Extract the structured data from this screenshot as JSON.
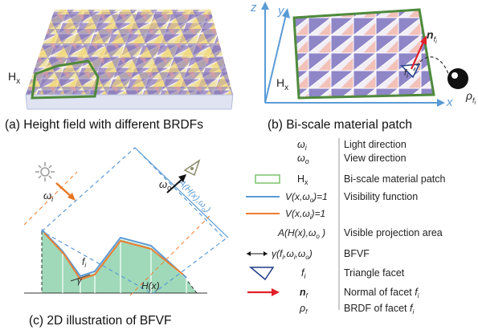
{
  "panels": {
    "a": {
      "caption": "(a) Height field with different BRDFs",
      "hx_label": "H",
      "hx_sub": "x"
    },
    "b": {
      "caption": "(b) Bi-scale material patch",
      "axis_x": "x",
      "axis_y": "y",
      "axis_z": "z",
      "hx_label": "H",
      "hx_sub": "x",
      "facet_label": "f",
      "facet_sub": "i",
      "normal_label": "n",
      "normal_sub": "f",
      "normal_subsub": "i",
      "rho_label": "ρ",
      "rho_sub": "f",
      "rho_subsub": "i"
    },
    "c": {
      "caption": "(c) 2D illustration of BFVF",
      "wi_label": "ω",
      "wi_sub": "i",
      "wo_label": "ω",
      "wo_sub": "o",
      "fi_label": "f",
      "fi_sub": "i",
      "gamma_label": "γ",
      "hx_label": "H(x)",
      "proj_label": "A(H(x),ω",
      "proj_sub": "o",
      "proj_tail": ")"
    }
  },
  "legend": [
    {
      "id": "light",
      "symbol": "ω",
      "sub": "i",
      "text": "Light direction"
    },
    {
      "id": "view",
      "symbol": "ω",
      "sub": "o",
      "text": "View direction"
    },
    {
      "id": "hx",
      "symbol": "H",
      "sub": "x",
      "text": "Bi-scale material patch"
    },
    {
      "id": "vis-o",
      "symbol": "V(x,ω",
      "sub": "o",
      "tail": ")=1",
      "text": "Visibility function",
      "color": "#5b9bd5"
    },
    {
      "id": "vis-i",
      "symbol": "V(x,ω",
      "sub": "i",
      "tail": ")=1",
      "text": "",
      "color": "#ed7d31"
    },
    {
      "id": "area",
      "symbol": "A(H(x),ω",
      "sub": "o",
      "tail": " )",
      "text": "Visible projection area"
    },
    {
      "id": "bfvf",
      "symbol": "γ(f",
      "sub": "i",
      "tail": ",ω",
      "sub2": "i",
      "tail2": ",ω",
      "sub3": "o",
      "tail3": ")",
      "text": "BFVF"
    },
    {
      "id": "facet",
      "symbol": "f",
      "sub": "i",
      "text": "Triangle facet"
    },
    {
      "id": "normal",
      "symbol": "n",
      "sub": "f",
      "text": "Normal of facet ",
      "text_sym": "f",
      "text_sub": "i"
    },
    {
      "id": "brdf",
      "symbol": "ρ",
      "sub": "f",
      "text": "BRDF of facet ",
      "text_sym": "f",
      "text_sub": "i"
    }
  ],
  "colors": {
    "patch_green": "#4e8a3c",
    "vis_blue": "#5b9bd5",
    "vis_orange": "#ed7d31",
    "fill_green": "#9fd9b9",
    "normal_red": "#e0202a",
    "arrow_orange": "#e87722"
  }
}
